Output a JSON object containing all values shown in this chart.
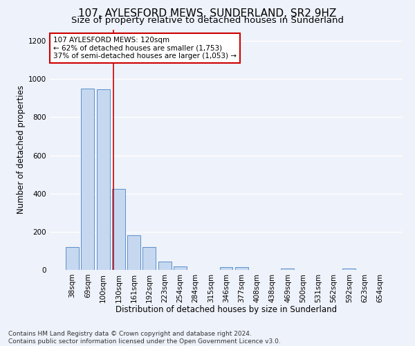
{
  "title": "107, AYLESFORD MEWS, SUNDERLAND, SR2 9HZ",
  "subtitle": "Size of property relative to detached houses in Sunderland",
  "xlabel": "Distribution of detached houses by size in Sunderland",
  "ylabel": "Number of detached properties",
  "categories": [
    "38sqm",
    "69sqm",
    "100sqm",
    "130sqm",
    "161sqm",
    "192sqm",
    "223sqm",
    "254sqm",
    "284sqm",
    "315sqm",
    "346sqm",
    "377sqm",
    "408sqm",
    "438sqm",
    "469sqm",
    "500sqm",
    "531sqm",
    "562sqm",
    "592sqm",
    "623sqm",
    "654sqm"
  ],
  "values": [
    120,
    950,
    945,
    425,
    182,
    120,
    42,
    18,
    0,
    0,
    14,
    15,
    0,
    0,
    8,
    0,
    0,
    0,
    8,
    0,
    0
  ],
  "bar_color": "#c5d8f0",
  "bar_edge_color": "#5b8fc9",
  "vline_color": "#cc0000",
  "annotation_line1": "107 AYLESFORD MEWS: 120sqm",
  "annotation_line2": "← 62% of detached houses are smaller (1,753)",
  "annotation_line3": "37% of semi-detached houses are larger (1,053) →",
  "annotation_box_color": "#ffffff",
  "annotation_box_edge_color": "#cc0000",
  "ylim": [
    0,
    1260
  ],
  "yticks": [
    0,
    200,
    400,
    600,
    800,
    1000,
    1200
  ],
  "footer": "Contains HM Land Registry data © Crown copyright and database right 2024.\nContains public sector information licensed under the Open Government Licence v3.0.",
  "background_color": "#eef2fa",
  "grid_color": "#ffffff",
  "title_fontsize": 11,
  "subtitle_fontsize": 9.5,
  "ylabel_fontsize": 8.5,
  "xlabel_fontsize": 8.5,
  "tick_fontsize": 7.5,
  "annotation_fontsize": 7.5,
  "footer_fontsize": 6.5
}
